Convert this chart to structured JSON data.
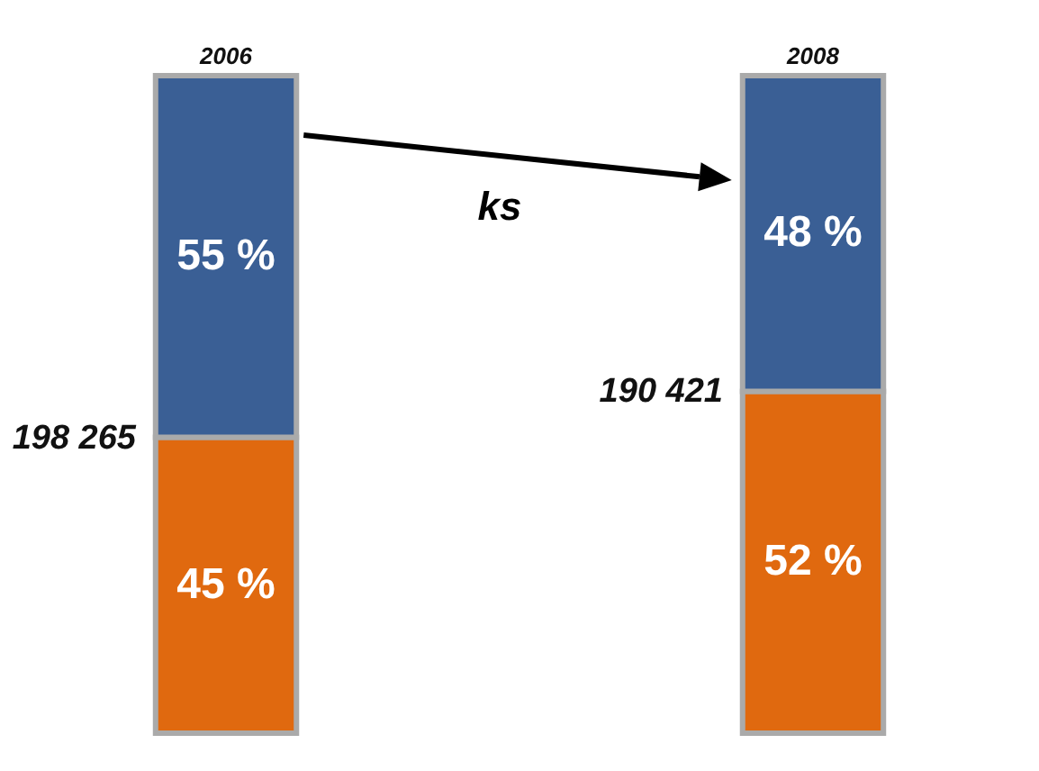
{
  "chart_data": {
    "type": "bar",
    "stacked": true,
    "categories": [
      "2006",
      "2008"
    ],
    "ylim": [
      0,
      100
    ],
    "tick_labels": "x",
    "series": [
      {
        "color": "#e0690f",
        "values": [
          45,
          52
        ],
        "value_labels": [
          "45 %",
          "52 %"
        ]
      },
      {
        "color": "#3a5f95",
        "values": [
          55,
          48
        ],
        "value_labels": [
          "55 %",
          "48 %"
        ]
      }
    ],
    "annotations": [
      {
        "text": "198 265",
        "x": "2006",
        "y": 45
      },
      {
        "text": "190 421",
        "x": "2008",
        "y": 52
      },
      "ks"
    ]
  }
}
